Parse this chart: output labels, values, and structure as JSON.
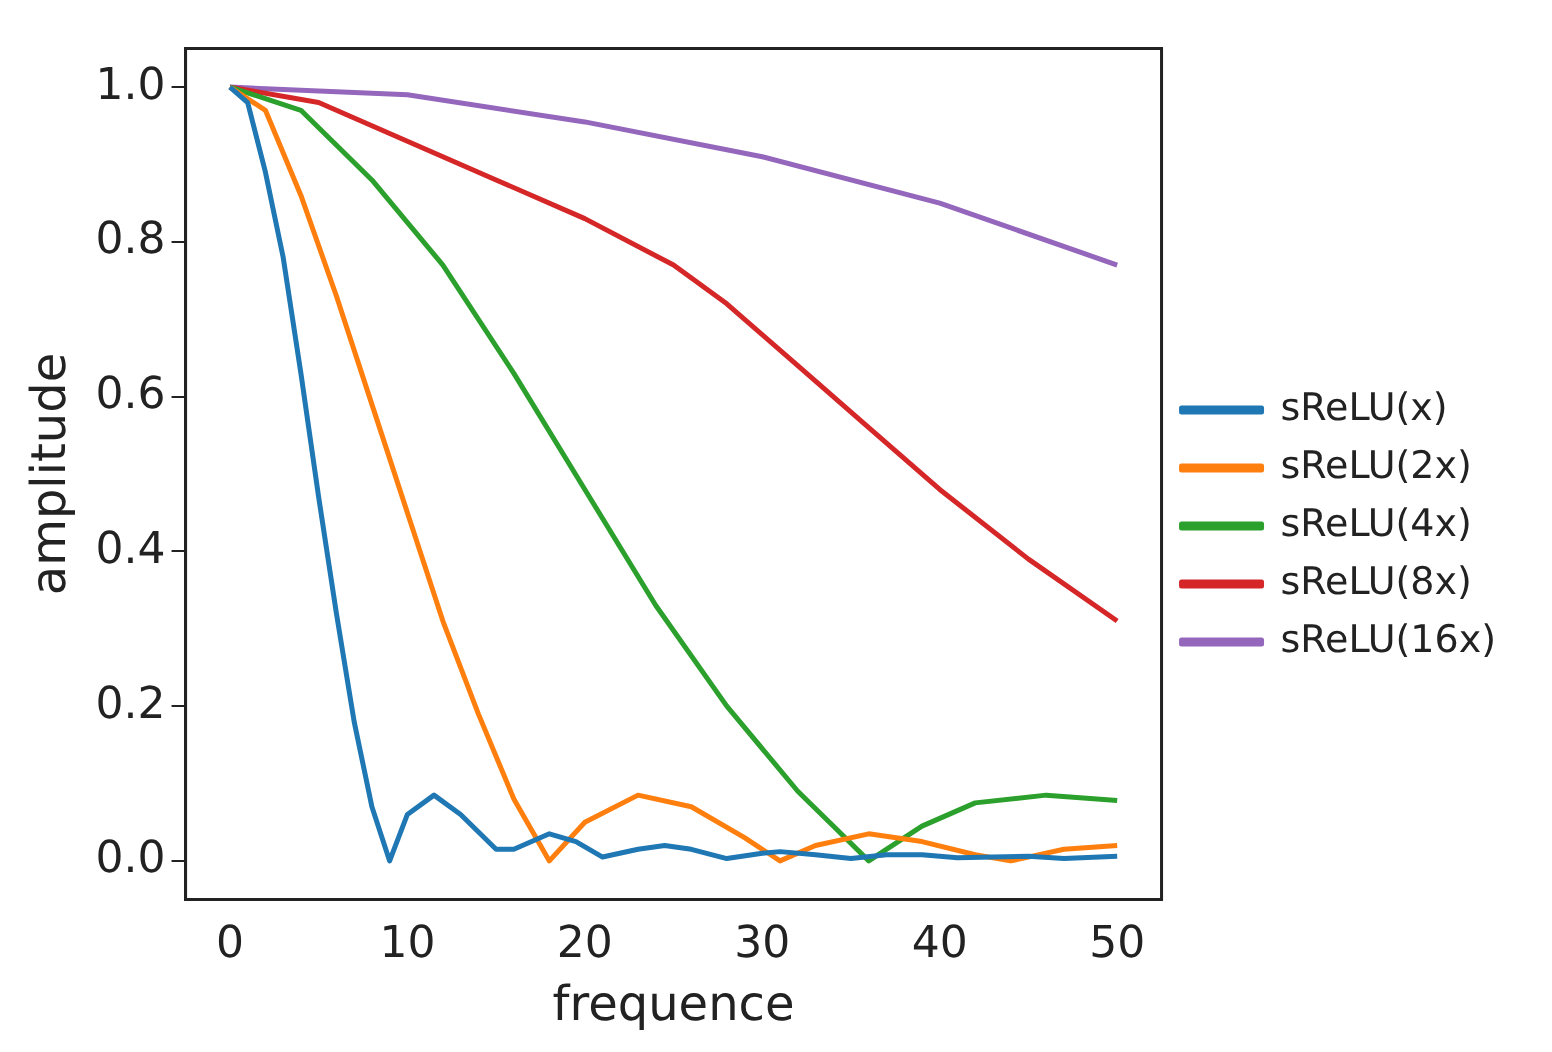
{
  "chart_data": {
    "type": "line",
    "xlabel": "frequence",
    "ylabel": "amplitude",
    "xlim": [
      -2.5,
      52.5
    ],
    "xticks": [
      0,
      10,
      20,
      30,
      40,
      50
    ],
    "ylim": [
      -0.05,
      1.05
    ],
    "yticks": [
      {
        "value": 0,
        "label": "0.0"
      },
      {
        "value": 0.2,
        "label": "0.2"
      },
      {
        "value": 0.4,
        "label": "0.4"
      },
      {
        "value": 0.6,
        "label": "0.6"
      },
      {
        "value": 0.8,
        "label": "0.8"
      },
      {
        "value": 1,
        "label": "1.0"
      }
    ],
    "grid": false,
    "legend": "right",
    "marker": "none",
    "line_style": "solid",
    "series": [
      {
        "name": "sReLU(x)",
        "color": "#1f77b4",
        "x": [
          0,
          1,
          2,
          3,
          4,
          5,
          6,
          7,
          8,
          9,
          10,
          11.5,
          13,
          15,
          16,
          18,
          19.5,
          21,
          23,
          24.5,
          26,
          28,
          30,
          31,
          33,
          35,
          37,
          39,
          41,
          43,
          45,
          47,
          50
        ],
        "values": [
          1,
          0.98,
          0.89,
          0.78,
          0.63,
          0.47,
          0.32,
          0.18,
          0.07,
          0.0,
          0.06,
          0.085,
          0.06,
          0.015,
          0.015,
          0.035,
          0.025,
          0.005,
          0.015,
          0.02,
          0.015,
          0.003,
          0.01,
          0.012,
          0.008,
          0.003,
          0.008,
          0.008,
          0.004,
          0.005,
          0.006,
          0.003,
          0.006
        ]
      },
      {
        "name": "sReLU(2x)",
        "color": "#ff7f0e",
        "x": [
          0,
          2,
          4,
          6,
          8,
          10,
          12,
          14,
          16,
          18,
          20,
          23,
          26,
          29,
          31,
          33,
          36,
          39,
          42,
          44,
          47,
          50
        ],
        "values": [
          1,
          0.97,
          0.86,
          0.73,
          0.59,
          0.45,
          0.31,
          0.19,
          0.08,
          0.0,
          0.05,
          0.085,
          0.07,
          0.03,
          0.0,
          0.02,
          0.035,
          0.025,
          0.008,
          0.0,
          0.015,
          0.02
        ]
      },
      {
        "name": "sReLU(4x)",
        "color": "#2ca02c",
        "x": [
          0,
          4,
          8,
          12,
          16,
          20,
          24,
          28,
          32,
          34,
          36,
          39,
          42,
          46,
          50
        ],
        "values": [
          1,
          0.97,
          0.88,
          0.77,
          0.63,
          0.48,
          0.33,
          0.2,
          0.09,
          0.045,
          0.0,
          0.045,
          0.075,
          0.085,
          0.078
        ]
      },
      {
        "name": "sReLU(8x)",
        "color": "#d62728",
        "x": [
          0,
          5,
          10,
          15,
          20,
          25,
          28,
          32,
          36,
          40,
          45,
          50
        ],
        "values": [
          1,
          0.98,
          0.93,
          0.88,
          0.83,
          0.77,
          0.72,
          0.64,
          0.56,
          0.48,
          0.39,
          0.31
        ]
      },
      {
        "name": "sReLU(16x)",
        "color": "#9467bd",
        "x": [
          0,
          10,
          20,
          30,
          40,
          50
        ],
        "values": [
          1,
          0.99,
          0.955,
          0.91,
          0.85,
          0.77
        ]
      }
    ]
  }
}
